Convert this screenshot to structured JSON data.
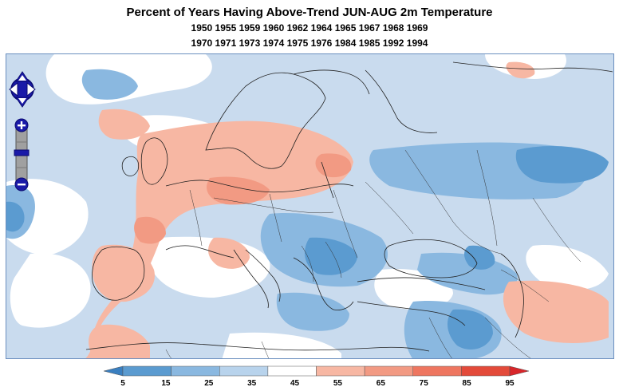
{
  "title": "Percent of Years Having Above-Trend JUN-AUG 2m Temperature",
  "years_line1": "1950 1955 1959 1960 1962 1964 1965 1967 1968 1969",
  "years_line2": "1970 1971 1973 1974 1975 1976 1984 1985 1992 1994",
  "legend": {
    "labels": [
      "5",
      "15",
      "25",
      "35",
      "45",
      "55",
      "65",
      "75",
      "85",
      "95"
    ],
    "colors": [
      "#3a7fc0",
      "#5b9bd0",
      "#8ab8e0",
      "#b8d3ec",
      "#ffffff",
      "#f7b7a3",
      "#f29a83",
      "#ee7660",
      "#e34a3a",
      "#d8262a"
    ]
  },
  "map_colors": {
    "deep_blue": "#5b9bd0",
    "mid_blue": "#8ab8e0",
    "light_blue": "#c9dbee",
    "white": "#ffffff",
    "light_red": "#f7b7a3",
    "mid_red": "#f29a83",
    "border": "#222222"
  },
  "controls": {
    "pan_icon": "pan-arrows-icon",
    "zoom_in_icon": "plus-icon",
    "zoom_out_icon": "minus-icon"
  }
}
